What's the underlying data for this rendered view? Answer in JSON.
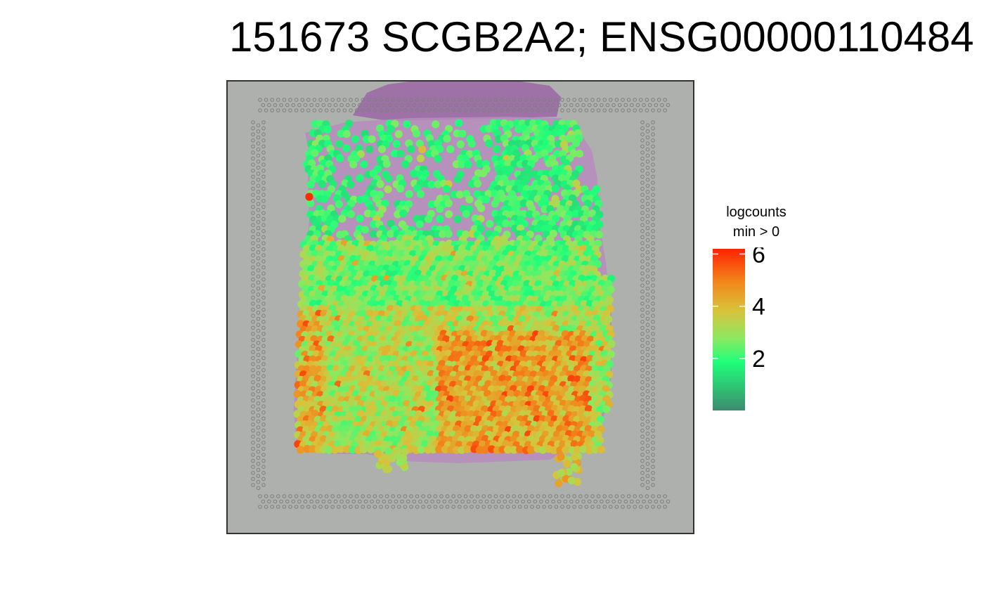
{
  "title": "151673 SCGB2A2; ENSG00000110484",
  "legend": {
    "title_line1": "logcounts",
    "title_line2": "min > 0",
    "ticks": [
      "6",
      "4",
      "2"
    ]
  },
  "chart_data": {
    "type": "scatter",
    "title": "151673 SCGB2A2; ENSG00000110484",
    "xlabel": "",
    "ylabel": "",
    "color_scale": {
      "variable": "logcounts",
      "filter": "min > 0",
      "domain": [
        0,
        6.2
      ],
      "ticks": [
        2,
        4,
        6
      ],
      "colors": [
        "#3d8b6e",
        "#1fff7a",
        "#d9c23a",
        "#f2851b",
        "#ff2200"
      ]
    },
    "background": "tissue histology image (H&E) with fiducial spot frame",
    "regions": [
      {
        "name": "upper region (sparse, low expression)",
        "approx_logcounts": 1.5
      },
      {
        "name": "middle band (mixed)",
        "approx_logcounts": 2.5
      },
      {
        "name": "lower region (dense, higher expression)",
        "approx_logcounts": 3.5
      }
    ],
    "max_value_spot_logcounts": 6.1,
    "grid": false,
    "legend_position": "right"
  }
}
